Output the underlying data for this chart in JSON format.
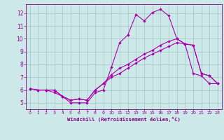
{
  "bg_color": "#cde8e8",
  "line_color": "#aa00aa",
  "grid_color": "#aacccc",
  "xlabel": "Windchill (Refroidissement éolien,°C)",
  "xlabel_color": "#880088",
  "tick_color": "#880088",
  "xlim": [
    -0.5,
    23.5
  ],
  "ylim": [
    4.5,
    12.7
  ],
  "yticks": [
    5,
    6,
    7,
    8,
    9,
    10,
    11,
    12
  ],
  "xticks": [
    0,
    1,
    2,
    3,
    4,
    5,
    6,
    7,
    8,
    9,
    10,
    11,
    12,
    13,
    14,
    15,
    16,
    17,
    18,
    19,
    20,
    21,
    22,
    23
  ],
  "series1_x": [
    0,
    1,
    2,
    3,
    4,
    5,
    6,
    7,
    8,
    9,
    10,
    11,
    12,
    13,
    14,
    15,
    16,
    17,
    18,
    19,
    20,
    21,
    22,
    23
  ],
  "series1_y": [
    6.1,
    6.0,
    6.0,
    5.8,
    5.5,
    5.0,
    5.0,
    5.0,
    5.8,
    6.0,
    7.8,
    9.7,
    10.3,
    11.9,
    11.4,
    12.05,
    12.3,
    11.8,
    10.0,
    9.6,
    7.3,
    7.1,
    6.5,
    6.5
  ],
  "series2_x": [
    0,
    1,
    2,
    3,
    4,
    5,
    6,
    7,
    8,
    9,
    10,
    11,
    12,
    13,
    14,
    15,
    16,
    17,
    18,
    19,
    20,
    21,
    22,
    23
  ],
  "series2_y": [
    6.1,
    6.0,
    6.0,
    6.0,
    5.5,
    5.2,
    5.3,
    5.2,
    6.0,
    6.5,
    7.2,
    7.7,
    8.0,
    8.4,
    8.8,
    9.1,
    9.5,
    9.8,
    10.0,
    9.6,
    9.5,
    7.3,
    7.1,
    6.5
  ],
  "series3_x": [
    0,
    1,
    2,
    3,
    4,
    5,
    6,
    7,
    8,
    9,
    10,
    11,
    12,
    13,
    14,
    15,
    16,
    17,
    18,
    19,
    20,
    21,
    22,
    23
  ],
  "series3_y": [
    6.1,
    6.0,
    6.0,
    6.0,
    5.5,
    5.2,
    5.3,
    5.2,
    6.0,
    6.5,
    7.0,
    7.3,
    7.7,
    8.1,
    8.5,
    8.8,
    9.1,
    9.4,
    9.7,
    9.6,
    9.5,
    7.3,
    7.1,
    6.5
  ]
}
